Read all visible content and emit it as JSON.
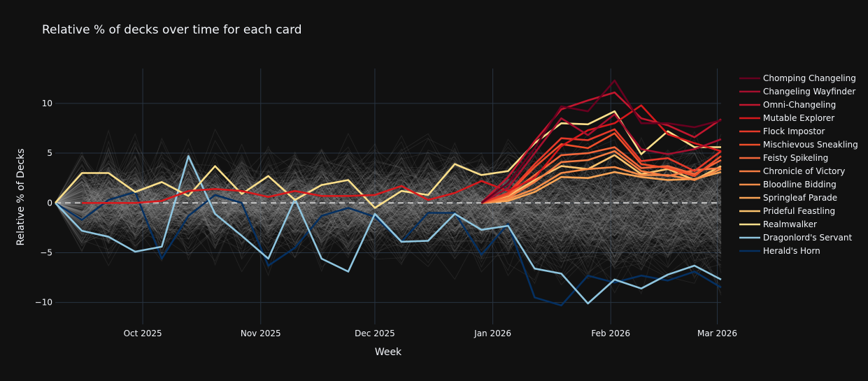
{
  "chart_data": {
    "type": "line",
    "title": "Relative  % of decks over time for each card",
    "xlabel": "Week",
    "ylabel": "Relative % of Decks",
    "x_ticks": [
      "Oct 2025",
      "Nov 2025",
      "Dec 2025",
      "Jan 2026",
      "Feb 2026",
      "Mar 2026"
    ],
    "x_tick_dates": [
      "2025-10-01",
      "2025-11-01",
      "2025-12-01",
      "2026-01-01",
      "2026-02-01",
      "2026-03-01"
    ],
    "x_range": [
      "2025-09-08",
      "2026-03-02"
    ],
    "y_ticks": [
      -10,
      -5,
      0,
      5,
      10
    ],
    "ylim": [
      -12.2,
      13.5
    ],
    "grid": true,
    "zero_line": "dashed",
    "legend_position": "right",
    "background_series": {
      "description": "hundreds of other cards, thin translucent grey lines",
      "color": "#9a9a9a",
      "count": 300,
      "spread": 2.2
    },
    "weeks": [
      "2025-09-08",
      "2025-09-15",
      "2025-09-22",
      "2025-09-29",
      "2025-10-06",
      "2025-10-13",
      "2025-10-20",
      "2025-10-27",
      "2025-11-03",
      "2025-11-10",
      "2025-11-17",
      "2025-11-24",
      "2025-12-01",
      "2025-12-08",
      "2025-12-15",
      "2025-12-22",
      "2025-12-29",
      "2026-01-05",
      "2026-01-12",
      "2026-01-19",
      "2026-01-26",
      "2026-02-02",
      "2026-02-09",
      "2026-02-16",
      "2026-02-23",
      "2026-03-02"
    ],
    "series": [
      {
        "name": "Chomping Changeling",
        "color": "#67001f",
        "start": 16,
        "values": [
          0,
          2.0,
          5.5,
          9.7,
          9.2,
          12.3,
          8.0,
          8.0,
          7.6,
          8.3
        ]
      },
      {
        "name": "Changeling Wayfinder",
        "color": "#a50f2e",
        "start": 16,
        "values": [
          0,
          1.5,
          5.0,
          8.5,
          6.8,
          8.9,
          5.4,
          4.9,
          5.4,
          6.4
        ]
      },
      {
        "name": "Omni-Changeling",
        "color": "#c2162e",
        "start": 16,
        "values": [
          0,
          2.6,
          6.2,
          9.4,
          10.3,
          11.1,
          8.5,
          7.8,
          6.6,
          8.4
        ]
      },
      {
        "name": "Mutable Explorer",
        "color": "#d7191c",
        "start": 1,
        "values": [
          0,
          0,
          0,
          0.2,
          1.2,
          1.4,
          1.2,
          0.6,
          1.2,
          0.7,
          0.7,
          0.8,
          1.7,
          0.3,
          1.0,
          2.2,
          1.2,
          2.5,
          5.7,
          7.3,
          8.0,
          9.8,
          6.9,
          6.0,
          5.2,
          5.6
        ]
      },
      {
        "name": "Flock Impostor",
        "color": "#e63a2a",
        "start": 16,
        "values": [
          0,
          1.0,
          3.9,
          6.5,
          6.3,
          7.4,
          4.2,
          4.5,
          3.2,
          5.2
        ]
      },
      {
        "name": "Mischievous Sneakling",
        "color": "#f04e2a",
        "start": 16,
        "values": [
          0,
          0.9,
          3.6,
          5.9,
          5.5,
          7.0,
          3.9,
          3.5,
          2.7,
          4.7
        ]
      },
      {
        "name": "Feisty Spikeling",
        "color": "#f4673a",
        "start": 16,
        "values": [
          0,
          0.8,
          2.8,
          4.8,
          5.0,
          5.6,
          3.5,
          3.7,
          2.9,
          4.3
        ]
      },
      {
        "name": "Chronicle of Victory",
        "color": "#f67c42",
        "start": 16,
        "values": [
          0,
          0.5,
          2.1,
          4.1,
          4.3,
          5.2,
          3.2,
          2.7,
          3.3,
          3.5
        ]
      },
      {
        "name": "Bloodline Bidding",
        "color": "#f88d49",
        "start": 16,
        "values": [
          0,
          0.4,
          1.4,
          3.0,
          3.4,
          3.6,
          2.8,
          2.8,
          2.3,
          3.4
        ]
      },
      {
        "name": "Springleaf Parade",
        "color": "#fba556",
        "start": 16,
        "values": [
          0,
          0.2,
          1.1,
          2.6,
          2.5,
          3.1,
          2.6,
          2.3,
          2.4,
          3.1
        ]
      },
      {
        "name": "Prideful Feastling",
        "color": "#fdc46e",
        "start": 16,
        "values": [
          0,
          0.7,
          2.3,
          3.7,
          3.4,
          4.8,
          2.9,
          3.4,
          2.3,
          3.7
        ]
      },
      {
        "name": "Realmwalker",
        "color": "#fee08b",
        "start": 0,
        "values": [
          0,
          3.0,
          3.0,
          1.1,
          2.1,
          0.7,
          3.7,
          0.9,
          2.7,
          0.3,
          1.8,
          2.3,
          -0.5,
          1.2,
          0.8,
          3.9,
          2.8,
          3.2,
          6.0,
          8.0,
          7.9,
          9.2,
          4.9,
          7.2,
          5.6,
          5.6
        ]
      },
      {
        "name": "Dragonlord's Servant",
        "color": "#8fc6e0",
        "start": 0,
        "values": [
          0,
          -2.8,
          -3.4,
          -4.9,
          -4.4,
          4.7,
          -1.1,
          -3.3,
          -5.6,
          0.4,
          -5.6,
          -6.9,
          -1.1,
          -3.9,
          -3.8,
          -1.1,
          -2.7,
          -2.3,
          -6.6,
          -7.1,
          -10.1,
          -7.7,
          -8.6,
          -7.2,
          -6.3,
          -7.7
        ]
      },
      {
        "name": "Herald's Horn",
        "color": "#053061",
        "start": 0,
        "values": [
          0,
          -1.7,
          0.3,
          1.1,
          -5.6,
          -1.3,
          0.8,
          0.0,
          -6.3,
          -4.5,
          -1.3,
          -0.5,
          -1.4,
          -3.9,
          -1.0,
          -1.0,
          -5.2,
          -2.1,
          -9.5,
          -10.3,
          -7.3,
          -8.0,
          -7.3,
          -7.8,
          -6.9,
          -8.5
        ]
      }
    ]
  }
}
